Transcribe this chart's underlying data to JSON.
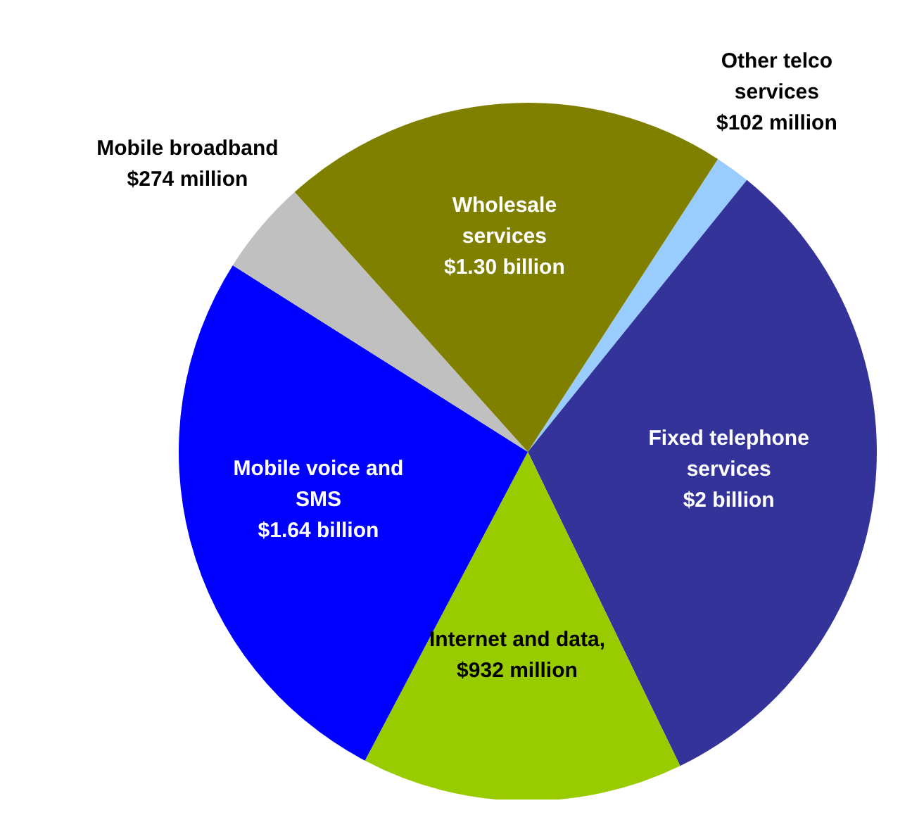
{
  "chart_data": {
    "type": "pie",
    "categories": [
      "Other telco services $102 million",
      "Fixed telephone services $2 billion",
      "Internet and data, $932 million",
      "Mobile voice and SMS $1.64 billion",
      "Mobile broadband $274 million",
      "Wholesale services $1.30 billion"
    ],
    "values": [
      102,
      2000,
      932,
      1640,
      274,
      1300
    ],
    "colors": [
      "#99ccff",
      "#333399",
      "#99cc00",
      "#0000ff",
      "#c0c0c0",
      "#808000"
    ]
  }
}
